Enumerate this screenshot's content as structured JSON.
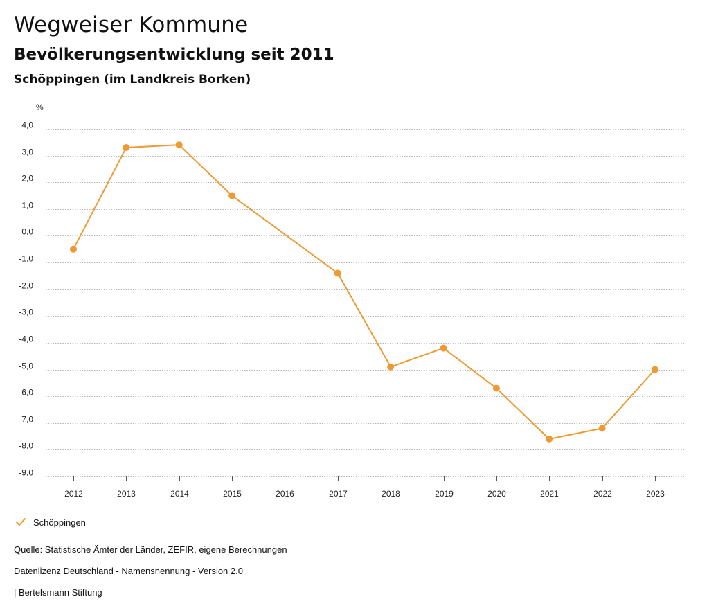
{
  "header": {
    "title": "Wegweiser Kommune",
    "subtitle": "Bevölkerungsentwicklung seit 2011",
    "region": "Schöppingen (im Landkreis Borken)"
  },
  "colors": {
    "series": "#ED9A32",
    "grid": "#B5B5B5",
    "axis": "#555555"
  },
  "chart_data": {
    "type": "line",
    "title": "Bevölkerungsentwicklung seit 2011",
    "ylabel": "%",
    "xlabel": "",
    "ylim": [
      -9,
      4
    ],
    "yticks": [
      4,
      3,
      2,
      1,
      0,
      -1,
      -2,
      -3,
      -4,
      -5,
      -6,
      -7,
      -8,
      -9
    ],
    "ytick_labels": [
      "4,0",
      "3,0",
      "2,0",
      "1,0",
      "0,0",
      "-1,0",
      "-2,0",
      "-3,0",
      "-4,0",
      "-5,0",
      "-6,0",
      "-7,0",
      "-8,0",
      "-9,0"
    ],
    "grid": true,
    "categories": [
      "2012",
      "2013",
      "2014",
      "2015",
      "2016",
      "2017",
      "2018",
      "2019",
      "2020",
      "2021",
      "2022",
      "2023"
    ],
    "series": [
      {
        "name": "Schöppingen",
        "values": [
          -0.5,
          3.3,
          3.4,
          1.5,
          null,
          -1.4,
          -4.9,
          -4.2,
          -5.7,
          -7.6,
          -7.2,
          -5.0
        ]
      }
    ]
  },
  "legend": {
    "label": "Schöppingen",
    "icon": "check-icon"
  },
  "footer": {
    "source": "Quelle: Statistische Ämter der Länder, ZEFIR, eigene Berechnungen",
    "license": "Datenlizenz Deutschland - Namensnennung - Version 2.0",
    "publisher": "| Bertelsmann Stiftung"
  }
}
